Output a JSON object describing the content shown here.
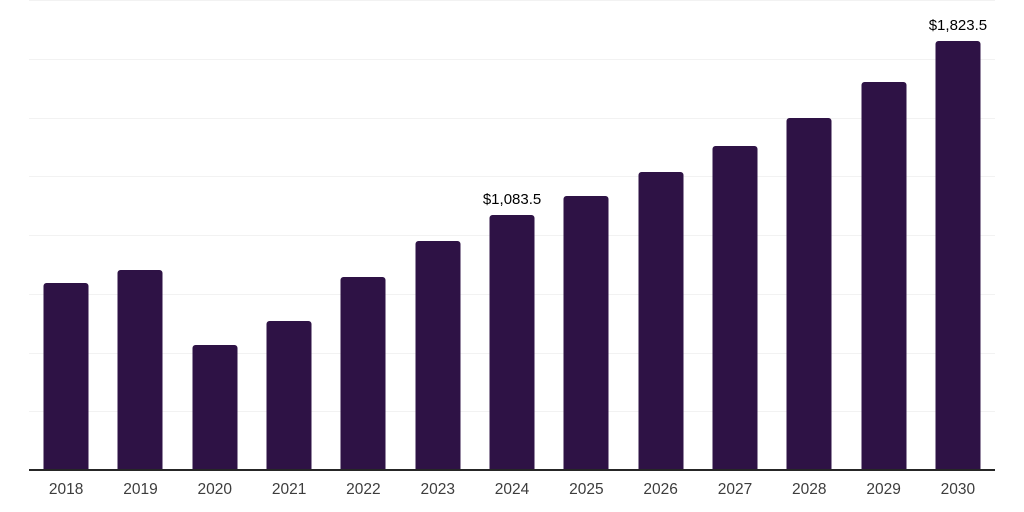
{
  "chart_data": {
    "type": "bar",
    "title": "",
    "xlabel": "",
    "ylabel": "",
    "categories": [
      "2018",
      "2019",
      "2020",
      "2021",
      "2022",
      "2023",
      "2024",
      "2025",
      "2026",
      "2027",
      "2028",
      "2029",
      "2030"
    ],
    "values": [
      795,
      851,
      531,
      634,
      820,
      975,
      1083.5,
      1166,
      1267,
      1378,
      1500,
      1650,
      1823.5
    ],
    "data_labels": {
      "2024": "$1,083.5",
      "2030": "$1,823.5"
    },
    "ylim": [
      0,
      2000
    ],
    "grid_step": 250,
    "grid": "horizontal",
    "legend": "none",
    "colors": {
      "bar": "#2e1245",
      "gridline": "#f2f2f2",
      "axis_line": "#262626",
      "tick_label": "#3d3d3d",
      "data_label": "#000000",
      "background": "#ffffff"
    }
  }
}
